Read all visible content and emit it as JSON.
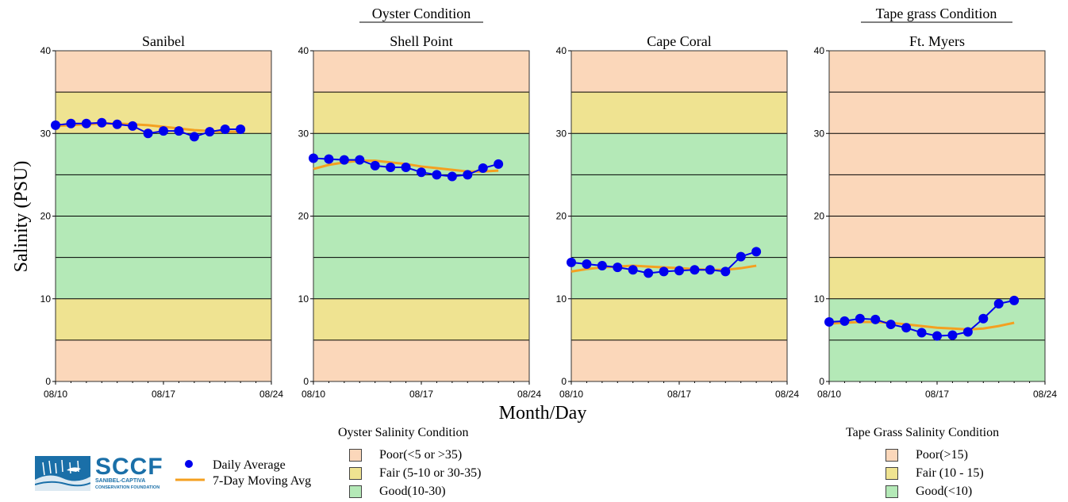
{
  "group_titles": {
    "oyster": "Oyster Condition",
    "tapegrass": "Tape grass Condition"
  },
  "y_axis_label": "Salinity (PSU)",
  "x_axis_label": "Month/Day",
  "colors": {
    "poor": "#fbd7ba",
    "fair": "#efe391",
    "good": "#b4e9b7",
    "daily": "#0000ee",
    "moving": "#f4a020"
  },
  "chart_data": [
    {
      "type": "line",
      "title": "Sanibel",
      "x_ticks": [
        "08/10",
        "08/17",
        "08/24"
      ],
      "y_ticks": [
        "0",
        "10",
        "20",
        "30",
        "40"
      ],
      "xlim": [
        0,
        14
      ],
      "ylim": [
        0,
        40
      ],
      "bands": [
        {
          "from": 0,
          "to": 5,
          "cond": "poor"
        },
        {
          "from": 5,
          "to": 10,
          "cond": "fair"
        },
        {
          "from": 10,
          "to": 30,
          "cond": "good"
        },
        {
          "from": 30,
          "to": 35,
          "cond": "fair"
        },
        {
          "from": 35,
          "to": 40,
          "cond": "poor"
        }
      ],
      "series": [
        {
          "name": "Daily Average",
          "x": [
            0,
            1,
            2,
            3,
            4,
            5,
            6,
            7,
            8,
            9,
            10,
            11,
            12
          ],
          "values": [
            31.0,
            31.2,
            31.2,
            31.3,
            31.1,
            30.9,
            30.0,
            30.3,
            30.3,
            29.6,
            30.2,
            30.5,
            30.5
          ]
        },
        {
          "name": "7-Day Moving Avg",
          "x": [
            0,
            1,
            2,
            3,
            4,
            5,
            6,
            7,
            8,
            9,
            10,
            11,
            12
          ],
          "values": [
            30.9,
            31.0,
            31.1,
            31.2,
            31.2,
            31.1,
            31.0,
            30.8,
            30.6,
            30.4,
            30.3,
            30.2,
            30.2
          ]
        }
      ]
    },
    {
      "type": "line",
      "title": "Shell Point",
      "x_ticks": [
        "08/10",
        "08/17",
        "08/24"
      ],
      "y_ticks": [
        "0",
        "10",
        "20",
        "30",
        "40"
      ],
      "xlim": [
        0,
        14
      ],
      "ylim": [
        0,
        40
      ],
      "bands": [
        {
          "from": 0,
          "to": 5,
          "cond": "poor"
        },
        {
          "from": 5,
          "to": 10,
          "cond": "fair"
        },
        {
          "from": 10,
          "to": 30,
          "cond": "good"
        },
        {
          "from": 30,
          "to": 35,
          "cond": "fair"
        },
        {
          "from": 35,
          "to": 40,
          "cond": "poor"
        }
      ],
      "series": [
        {
          "name": "Daily Average",
          "x": [
            0,
            1,
            2,
            3,
            4,
            5,
            6,
            7,
            8,
            9,
            10,
            11,
            12
          ],
          "values": [
            27.0,
            26.9,
            26.8,
            26.8,
            26.1,
            25.9,
            25.9,
            25.3,
            25.0,
            24.8,
            25.0,
            25.8,
            26.3
          ]
        },
        {
          "name": "7-Day Moving Avg",
          "x": [
            0,
            1,
            2,
            3,
            4,
            5,
            6,
            7,
            8,
            9,
            10,
            11,
            12
          ],
          "values": [
            25.7,
            26.2,
            26.5,
            26.7,
            26.7,
            26.5,
            26.3,
            26.0,
            25.8,
            25.6,
            25.4,
            25.4,
            25.5
          ]
        }
      ]
    },
    {
      "type": "line",
      "title": "Cape Coral",
      "x_ticks": [
        "08/10",
        "08/17",
        "08/24"
      ],
      "y_ticks": [
        "0",
        "10",
        "20",
        "30",
        "40"
      ],
      "xlim": [
        0,
        14
      ],
      "ylim": [
        0,
        40
      ],
      "bands": [
        {
          "from": 0,
          "to": 5,
          "cond": "poor"
        },
        {
          "from": 5,
          "to": 10,
          "cond": "fair"
        },
        {
          "from": 10,
          "to": 30,
          "cond": "good"
        },
        {
          "from": 30,
          "to": 35,
          "cond": "fair"
        },
        {
          "from": 35,
          "to": 40,
          "cond": "poor"
        }
      ],
      "series": [
        {
          "name": "Daily Average",
          "x": [
            0,
            1,
            2,
            3,
            4,
            5,
            6,
            7,
            8,
            9,
            10,
            11,
            12
          ],
          "values": [
            14.4,
            14.2,
            14.0,
            13.8,
            13.5,
            13.1,
            13.3,
            13.4,
            13.5,
            13.5,
            13.3,
            15.1,
            15.7
          ]
        },
        {
          "name": "7-Day Moving Avg",
          "x": [
            0,
            1,
            2,
            3,
            4,
            5,
            6,
            7,
            8,
            9,
            10,
            11,
            12
          ],
          "values": [
            13.3,
            13.6,
            13.8,
            13.9,
            14.0,
            13.9,
            13.8,
            13.7,
            13.6,
            13.5,
            13.5,
            13.7,
            14.0
          ]
        }
      ]
    },
    {
      "type": "line",
      "title": "Ft. Myers",
      "x_ticks": [
        "08/10",
        "08/17",
        "08/24"
      ],
      "y_ticks": [
        "0",
        "10",
        "20",
        "30",
        "40"
      ],
      "xlim": [
        0,
        14
      ],
      "ylim": [
        0,
        40
      ],
      "bands": [
        {
          "from": 0,
          "to": 10,
          "cond": "good"
        },
        {
          "from": 10,
          "to": 15,
          "cond": "fair"
        },
        {
          "from": 15,
          "to": 40,
          "cond": "poor"
        }
      ],
      "series": [
        {
          "name": "Daily Average",
          "x": [
            0,
            1,
            2,
            3,
            4,
            5,
            6,
            7,
            8,
            9,
            10,
            11,
            12
          ],
          "values": [
            7.2,
            7.3,
            7.6,
            7.5,
            6.9,
            6.5,
            5.9,
            5.5,
            5.6,
            6.0,
            7.6,
            9.4,
            9.8
          ]
        },
        {
          "name": "7-Day Moving Avg",
          "x": [
            0,
            1,
            2,
            3,
            4,
            5,
            6,
            7,
            8,
            9,
            10,
            11,
            12
          ],
          "values": [
            7.0,
            7.1,
            7.2,
            7.2,
            7.1,
            6.9,
            6.7,
            6.5,
            6.4,
            6.3,
            6.4,
            6.7,
            7.1
          ]
        }
      ]
    }
  ],
  "series_legend": {
    "daily": "Daily Average",
    "moving": "7-Day Moving Avg"
  },
  "logo": {
    "name": "SCCF",
    "line1": "SANIBEL-CAPTIVA",
    "line2": "CONSERVATION FOUNDATION"
  },
  "oyster_legend": {
    "title": "Oyster Salinity Condition",
    "items": [
      {
        "label": "Poor(<5 or >35)",
        "cond": "poor"
      },
      {
        "label": "Fair (5-10 or 30-35)",
        "cond": "fair"
      },
      {
        "label": "Good(10-30)",
        "cond": "good"
      }
    ]
  },
  "tapegrass_legend": {
    "title": "Tape Grass Salinity Condition",
    "items": [
      {
        "label": "Poor(>15)",
        "cond": "poor"
      },
      {
        "label": "Fair (10 - 15)",
        "cond": "fair"
      },
      {
        "label": "Good(<10)",
        "cond": "good"
      }
    ]
  }
}
